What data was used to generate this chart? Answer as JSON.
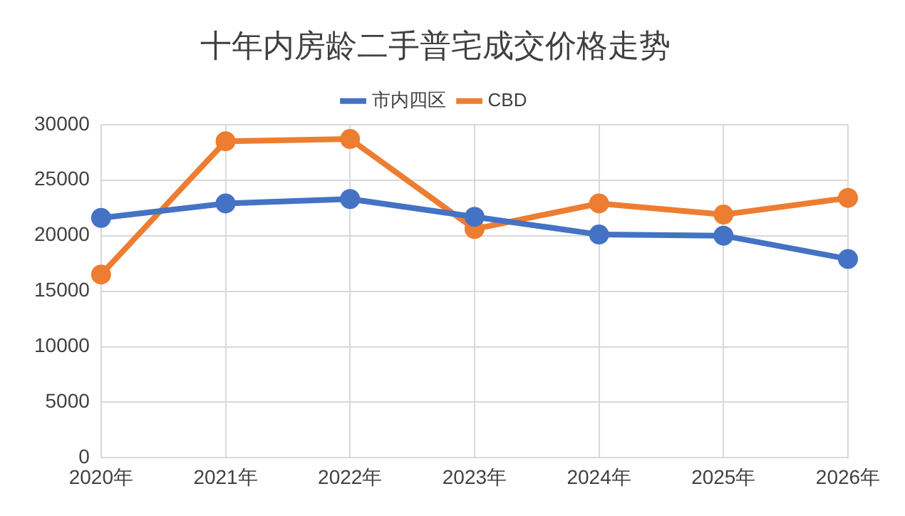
{
  "chart_data": {
    "type": "line",
    "title": "十年内房龄二手普宅成交价格走势",
    "categories": [
      "2020年",
      "2021年",
      "2022年",
      "2023年",
      "2024年",
      "2025年",
      "2026年"
    ],
    "series": [
      {
        "name": "市内四区",
        "color": "#4472c4",
        "values": [
          21600,
          22900,
          23300,
          21700,
          20100,
          20000,
          17900
        ]
      },
      {
        "name": "CBD",
        "color": "#ed7d31",
        "values": [
          16500,
          28500,
          28700,
          20600,
          22900,
          21900,
          23400
        ]
      }
    ],
    "ylim": [
      0,
      30000
    ],
    "yticks": [
      0,
      5000,
      10000,
      15000,
      20000,
      25000,
      30000
    ],
    "grid": true,
    "legend": "top",
    "marker": "circle",
    "line_style": "solid"
  }
}
